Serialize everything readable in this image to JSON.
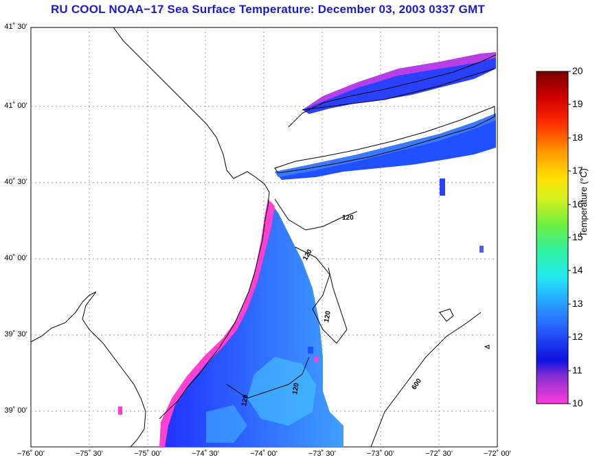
{
  "title": "RU COOL  NOAA−17  Sea Surface Temperature:  December 03, 2003 0337 GMT",
  "lat_labels": [
    "41˚ 30’",
    "41˚ 00’",
    "40˚ 30’",
    "40˚ 00’",
    "39˚ 30’",
    "39˚ 00’"
  ],
  "lon_labels": [
    "−76˚ 00’",
    "−75˚ 30’",
    "−75˚ 00’",
    "−74˚ 30’",
    "−74˚ 00’",
    "−73˚ 30’",
    "−73˚ 00’",
    "−72˚ 30’",
    "−72˚ 00’"
  ],
  "colorbar": {
    "label": "Temperature (°C)",
    "min": 10,
    "max": 20,
    "ticks": [
      "20",
      "19",
      "18",
      "17",
      "16",
      "15",
      "14",
      "13",
      "12",
      "11",
      "10"
    ]
  },
  "isobath_labels": [
    "120",
    "120",
    "120",
    "120",
    "120",
    "600"
  ],
  "colors": {
    "title": "#1a1acc",
    "warm_water": "#1e3cff",
    "cool_water": "#ff40d0"
  }
}
